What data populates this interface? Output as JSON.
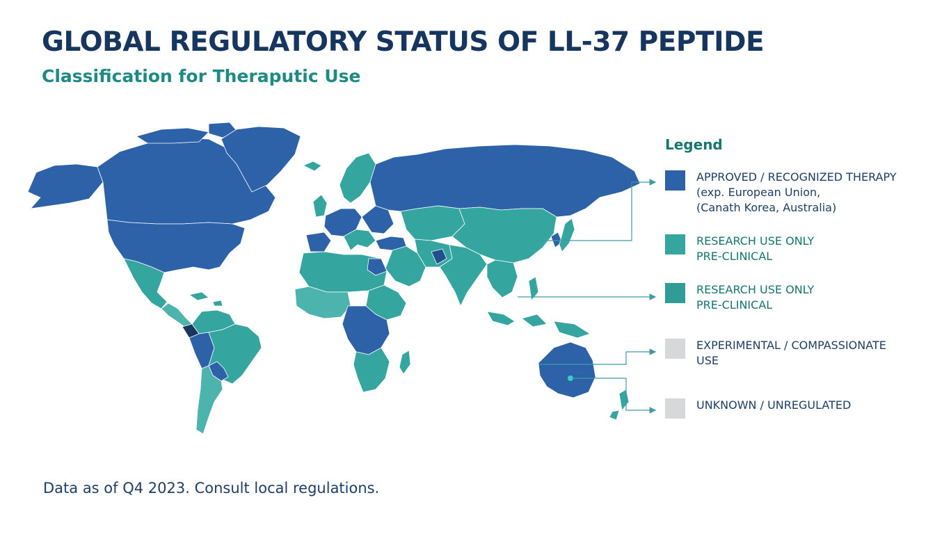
{
  "header": {
    "title": "GLOBAL REGULATORY STATUS OF LL-37 PEPTIDE",
    "subtitle": "Classification for Theraputic Use"
  },
  "legend": {
    "title": "Legend",
    "items": [
      {
        "category": "approved",
        "color": "#2e62a8",
        "lines": [
          "APPROVED / RECOGNIZED THERAPY",
          "(exp. European Union,",
          "(Canath Korea, Australia)"
        ]
      },
      {
        "category": "research-1",
        "color": "#35a5a0",
        "lines": [
          "RESEARCH USE ONLY",
          "PRE-CLINICAL"
        ]
      },
      {
        "category": "research-2",
        "color": "#2f9c98",
        "lines": [
          "RESEARCH USE ONLY",
          "PRE-CLINICAL"
        ]
      },
      {
        "category": "experimental",
        "color": "#d6d8da",
        "lines": [
          "EXPERIMENTAL / COMPASSIONATE",
          "USE"
        ]
      },
      {
        "category": "unknown",
        "color": "#d6d8da",
        "lines": [
          "UNKNOWN / UNREGULATED"
        ]
      }
    ]
  },
  "colors": {
    "approved": "#2e62a8",
    "approved_dark": "#234f8f",
    "research": "#35a5a0",
    "research_light": "#4cb3ad",
    "connector": "#3f9aa6",
    "border": "#ffffff"
  },
  "footer": {
    "note": "Data as of Q4 2023. Consult local regulations."
  }
}
